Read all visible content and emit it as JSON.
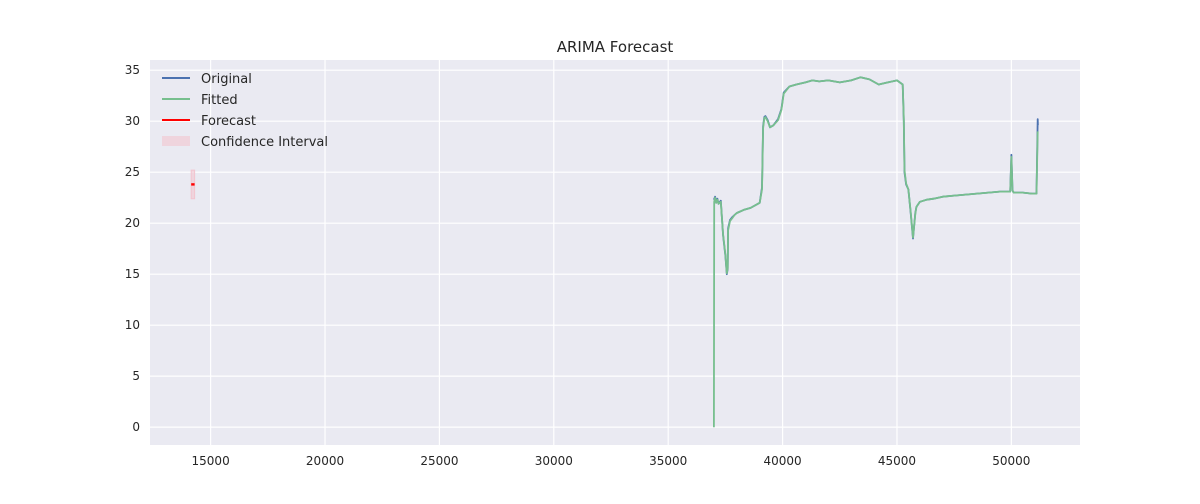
{
  "chart_data": {
    "type": "line",
    "title": "ARIMA Forecast",
    "xlabel": "",
    "ylabel": "",
    "xlim": [
      12350,
      53000
    ],
    "ylim": [
      -1.75,
      36.0
    ],
    "x_ticks": [
      15000,
      20000,
      25000,
      30000,
      35000,
      40000,
      45000,
      50000
    ],
    "y_ticks": [
      0,
      5,
      10,
      15,
      20,
      25,
      30,
      35
    ],
    "grid": true,
    "legend_position": "top-left",
    "colors": {
      "original": "#4c72b0",
      "fitted": "#77bf8e",
      "forecast": "#ff0000",
      "confidence": "#f2c4cf",
      "background": "#eaeaf2",
      "grid": "#ffffff"
    },
    "legend": [
      {
        "label": "Original",
        "kind": "line",
        "color": "#4c72b0"
      },
      {
        "label": "Fitted",
        "kind": "line",
        "color": "#77bf8e"
      },
      {
        "label": "Forecast",
        "kind": "line",
        "color": "#ff0000"
      },
      {
        "label": "Confidence Interval",
        "kind": "patch",
        "color": "#f2c4cf"
      }
    ],
    "series": [
      {
        "name": "Original",
        "color": "#4c72b0",
        "x": [
          37000,
          37050,
          37100,
          37150,
          37200,
          37300,
          37400,
          37500,
          37560,
          37600,
          37620,
          37700,
          37800,
          37900,
          38000,
          38300,
          38600,
          39000,
          39100,
          39150,
          39200,
          39250,
          39350,
          39450,
          39600,
          39800,
          39950,
          40050,
          40300,
          40600,
          41000,
          41300,
          41600,
          42000,
          42500,
          43000,
          43400,
          43800,
          44200,
          44600,
          45000,
          45250,
          45300,
          45330,
          45400,
          45500,
          45600,
          45700,
          45800,
          45850,
          46000,
          46300,
          46600,
          47000,
          47500,
          48000,
          48500,
          49000,
          49500,
          49950,
          50000,
          50050,
          50100,
          50500,
          50900,
          51100,
          51150,
          51160
        ],
        "y": [
          22.3,
          22.6,
          22.0,
          22.4,
          21.9,
          22.2,
          18.8,
          16.8,
          15.0,
          15.5,
          19.5,
          20.3,
          20.6,
          20.8,
          21.0,
          21.3,
          21.5,
          22.0,
          23.5,
          29.5,
          30.4,
          30.5,
          30.1,
          29.4,
          29.6,
          30.2,
          31.2,
          32.8,
          33.4,
          33.6,
          33.8,
          34.0,
          33.9,
          34.0,
          33.8,
          34.0,
          34.3,
          34.1,
          33.6,
          33.8,
          34.0,
          33.6,
          30.0,
          25.0,
          23.8,
          23.3,
          21.0,
          18.5,
          21.0,
          21.6,
          22.1,
          22.3,
          22.4,
          22.6,
          22.7,
          22.8,
          22.9,
          23.0,
          23.1,
          23.1,
          26.7,
          23.2,
          23.0,
          23.0,
          22.9,
          22.9,
          30.2,
          29.6
        ]
      },
      {
        "name": "Fitted",
        "color": "#77bf8e",
        "x": [
          37000,
          37010,
          37050,
          37100,
          37150,
          37200,
          37300,
          37400,
          37500,
          37560,
          37600,
          37620,
          37700,
          37800,
          37900,
          38000,
          38300,
          38600,
          39000,
          39100,
          39150,
          39200,
          39250,
          39350,
          39450,
          39600,
          39800,
          39950,
          40050,
          40300,
          40600,
          41000,
          41300,
          41600,
          42000,
          42500,
          43000,
          43400,
          43800,
          44200,
          44600,
          45000,
          45250,
          45300,
          45330,
          45400,
          45500,
          45600,
          45700,
          45800,
          45850,
          46000,
          46300,
          46600,
          47000,
          47500,
          48000,
          48500,
          49000,
          49500,
          49950,
          50000,
          50050,
          50100,
          50500,
          50900,
          51100,
          51150
        ],
        "y": [
          0.0,
          22.1,
          22.5,
          22.0,
          22.3,
          21.9,
          22.1,
          18.9,
          16.9,
          15.1,
          15.6,
          19.3,
          20.2,
          20.5,
          20.8,
          21.0,
          21.3,
          21.5,
          22.0,
          23.3,
          29.3,
          30.3,
          30.4,
          30.0,
          29.4,
          29.6,
          30.1,
          31.1,
          32.7,
          33.4,
          33.6,
          33.8,
          34.0,
          33.9,
          34.0,
          33.8,
          34.0,
          34.3,
          34.1,
          33.6,
          33.8,
          34.0,
          33.6,
          30.2,
          25.2,
          23.9,
          23.3,
          21.1,
          18.6,
          20.9,
          21.6,
          22.1,
          22.3,
          22.4,
          22.6,
          22.7,
          22.8,
          22.9,
          23.0,
          23.1,
          23.1,
          26.5,
          23.2,
          23.0,
          23.0,
          22.9,
          22.9,
          29.0
        ]
      },
      {
        "name": "Forecast",
        "color": "#ff0000",
        "x": [
          14150,
          14300
        ],
        "y": [
          23.8,
          23.8
        ],
        "ci_lower": [
          22.4,
          22.4
        ],
        "ci_upper": [
          25.2,
          25.2
        ]
      }
    ]
  }
}
